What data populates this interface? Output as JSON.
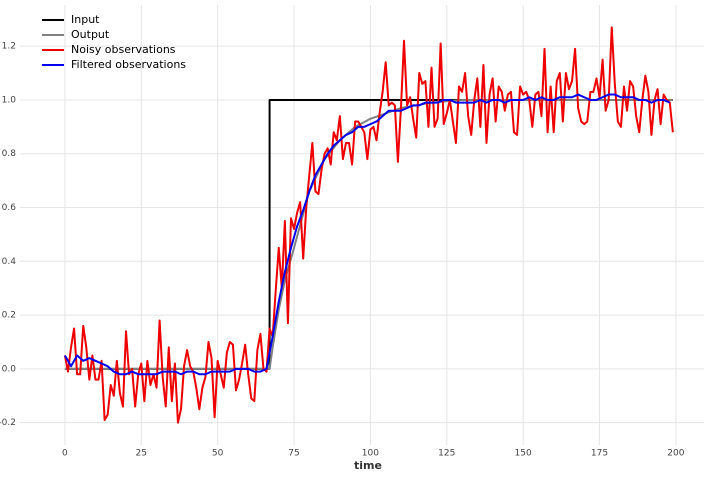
{
  "chart_data": {
    "type": "line",
    "xlabel": "time",
    "xlim": [
      -14.7,
      209.2
    ],
    "ylim": [
      -0.283,
      1.353
    ],
    "xticks": [
      0,
      25,
      50,
      75,
      100,
      125,
      150,
      175,
      200
    ],
    "yticks": [
      -0.2,
      {
        "value": 0,
        "label": "0.0"
      },
      0.2,
      0.4,
      0.6,
      0.8,
      {
        "value": 1,
        "label": "1.0"
      },
      1.2
    ],
    "grid": true,
    "legend": "upper left",
    "series": [
      {
        "name": "Input",
        "color": "#000000",
        "x": [
          0,
          67,
          67,
          199
        ],
        "values": [
          0,
          0,
          1,
          1
        ]
      },
      {
        "name": "Output",
        "color": "#808080",
        "x": [
          0,
          66,
          67,
          68,
          70,
          72,
          75,
          80,
          85,
          90,
          95,
          100,
          105,
          110,
          115,
          120,
          130,
          140,
          150,
          160,
          170,
          180,
          190,
          199
        ],
        "values": [
          0,
          0,
          0,
          0.08,
          0.22,
          0.33,
          0.45,
          0.66,
          0.78,
          0.85,
          0.9,
          0.93,
          0.95,
          0.97,
          0.98,
          0.99,
          1,
          1,
          1,
          1,
          1,
          1,
          1,
          1
        ]
      },
      {
        "name": "Noisy observations",
        "color": "#ee0000",
        "x": [
          0,
          1,
          2,
          3,
          4,
          5,
          6,
          7,
          8,
          9,
          10,
          11,
          12,
          13,
          14,
          15,
          16,
          17,
          18,
          19,
          20,
          21,
          22,
          23,
          24,
          25,
          26,
          27,
          28,
          29,
          30,
          31,
          32,
          33,
          34,
          35,
          36,
          37,
          38,
          39,
          40,
          41,
          42,
          43,
          44,
          45,
          46,
          47,
          48,
          49,
          50,
          51,
          52,
          53,
          54,
          55,
          56,
          57,
          58,
          59,
          60,
          61,
          62,
          63,
          64,
          65,
          66,
          67,
          68,
          69,
          70,
          71,
          72,
          73,
          74,
          75,
          76,
          77,
          78,
          79,
          80,
          81,
          82,
          83,
          84,
          85,
          86,
          87,
          88,
          89,
          90,
          91,
          92,
          93,
          94,
          95,
          96,
          97,
          98,
          99,
          100,
          101,
          102,
          103,
          104,
          105,
          106,
          107,
          108,
          109,
          110,
          111,
          112,
          113,
          114,
          115,
          116,
          117,
          118,
          119,
          120,
          121,
          122,
          123,
          124,
          125,
          126,
          127,
          128,
          129,
          130,
          131,
          132,
          133,
          134,
          135,
          136,
          137,
          138,
          139,
          140,
          141,
          142,
          143,
          144,
          145,
          146,
          147,
          148,
          149,
          150,
          151,
          152,
          153,
          154,
          155,
          156,
          157,
          158,
          159,
          160,
          161,
          162,
          163,
          164,
          165,
          166,
          167,
          168,
          169,
          170,
          171,
          172,
          173,
          174,
          175,
          176,
          177,
          178,
          179,
          180,
          181,
          182,
          183,
          184,
          185,
          186,
          187,
          188,
          189,
          190,
          191,
          192,
          193,
          194,
          195,
          196,
          197,
          198,
          199
        ],
        "values": [
          0.05,
          -0.01,
          0.08,
          0.15,
          -0.02,
          -0.02,
          0.16,
          0.08,
          -0.04,
          0.05,
          -0.04,
          -0.04,
          0.03,
          -0.19,
          -0.17,
          -0.06,
          -0.1,
          0.03,
          -0.09,
          -0.14,
          0.14,
          -0.02,
          0.0,
          -0.14,
          -0.02,
          0.02,
          -0.12,
          0.03,
          -0.06,
          -0.02,
          -0.07,
          0.18,
          -0.03,
          -0.14,
          0.08,
          -0.12,
          0.02,
          -0.2,
          -0.15,
          0.01,
          0.07,
          0.01,
          -0.01,
          -0.07,
          -0.15,
          -0.07,
          -0.03,
          0.1,
          0.04,
          -0.18,
          0.03,
          -0.02,
          -0.07,
          0.06,
          0.1,
          0.09,
          -0.08,
          -0.04,
          0.02,
          0.09,
          -0.02,
          -0.11,
          -0.12,
          0.07,
          0.13,
          0.0,
          -0.01,
          0.15,
          0.12,
          0.29,
          0.45,
          0.3,
          0.55,
          0.17,
          0.56,
          0.52,
          0.58,
          0.62,
          0.41,
          0.6,
          0.72,
          0.84,
          0.66,
          0.65,
          0.74,
          0.8,
          0.82,
          0.76,
          0.88,
          0.85,
          0.94,
          0.78,
          0.84,
          0.84,
          0.76,
          0.92,
          0.92,
          0.9,
          0.88,
          0.78,
          0.89,
          0.9,
          0.85,
          0.95,
          1.03,
          1.14,
          0.98,
          0.99,
          0.98,
          0.77,
          0.97,
          1.22,
          0.98,
          1.01,
          0.93,
          0.86,
          1.1,
          1.06,
          1.07,
          0.9,
          1.12,
          0.9,
          0.93,
          1.21,
          0.91,
          0.95,
          1.0,
          0.92,
          0.84,
          1.05,
          1.03,
          1.1,
          0.94,
          0.87,
          1.0,
          1.08,
          0.9,
          1.13,
          0.84,
          1.02,
          1.08,
          0.92,
          1.05,
          1.03,
          0.96,
          1.02,
          1.03,
          0.88,
          0.87,
          1.05,
          1.02,
          1.03,
          1.0,
          0.9,
          1.02,
          1.03,
          0.94,
          1.19,
          0.88,
          1.05,
          0.88,
          1.07,
          1.1,
          0.92,
          1.1,
          1.04,
          1.07,
          1.19,
          0.97,
          0.92,
          0.91,
          0.92,
          1.03,
          1.03,
          1.08,
          1.01,
          1.15,
          0.96,
          1.0,
          1.27,
          1.06,
          0.92,
          0.9,
          1.05,
          0.96,
          1.07,
          1.05,
          0.94,
          0.88,
          1.0,
          1.09,
          1.03,
          0.87,
          1.0,
          1.04,
          0.91,
          1.02,
          1.0,
          0.99,
          0.88
        ]
      },
      {
        "name": "Filtered observations",
        "color": "#0000ee",
        "x": [
          0,
          2,
          4,
          6,
          8,
          10,
          12,
          14,
          16,
          18,
          20,
          22,
          24,
          26,
          28,
          30,
          32,
          34,
          36,
          38,
          40,
          42,
          44,
          46,
          48,
          50,
          52,
          54,
          56,
          58,
          60,
          62,
          64,
          66,
          68,
          70,
          72,
          74,
          76,
          78,
          80,
          82,
          84,
          86,
          88,
          90,
          92,
          94,
          96,
          98,
          100,
          102,
          104,
          106,
          108,
          110,
          112,
          114,
          116,
          118,
          120,
          122,
          124,
          126,
          128,
          130,
          132,
          134,
          136,
          138,
          140,
          142,
          144,
          146,
          148,
          150,
          152,
          154,
          156,
          158,
          160,
          162,
          164,
          166,
          168,
          170,
          172,
          174,
          176,
          178,
          180,
          182,
          184,
          186,
          188,
          190,
          192,
          194,
          196,
          198
        ],
        "values": [
          0.05,
          0.01,
          0.05,
          0.03,
          0.04,
          0.03,
          0.02,
          0.01,
          -0.01,
          -0.02,
          -0.02,
          -0.01,
          -0.02,
          -0.02,
          -0.02,
          -0.02,
          -0.01,
          -0.01,
          -0.01,
          -0.02,
          -0.01,
          -0.01,
          -0.02,
          -0.02,
          -0.01,
          -0.01,
          -0.01,
          -0.01,
          0.0,
          0.0,
          0.0,
          -0.01,
          -0.01,
          0.0,
          0.12,
          0.25,
          0.36,
          0.45,
          0.53,
          0.59,
          0.66,
          0.72,
          0.76,
          0.8,
          0.83,
          0.85,
          0.87,
          0.88,
          0.9,
          0.9,
          0.91,
          0.92,
          0.94,
          0.96,
          0.96,
          0.96,
          0.97,
          0.98,
          0.98,
          0.99,
          0.99,
          0.99,
          1.0,
          1.0,
          0.99,
          0.99,
          0.99,
          0.99,
          1.0,
          0.99,
          1.0,
          1.0,
          0.99,
          1.0,
          1.0,
          1.0,
          1.01,
          1.0,
          1.01,
          1.0,
          1.0,
          1.01,
          1.01,
          1.01,
          1.02,
          1.01,
          1.0,
          1.0,
          1.01,
          1.02,
          1.02,
          1.01,
          1.01,
          1.01,
          1.0,
          1.0,
          0.99,
          1.0,
          1.0,
          0.99
        ]
      }
    ]
  }
}
